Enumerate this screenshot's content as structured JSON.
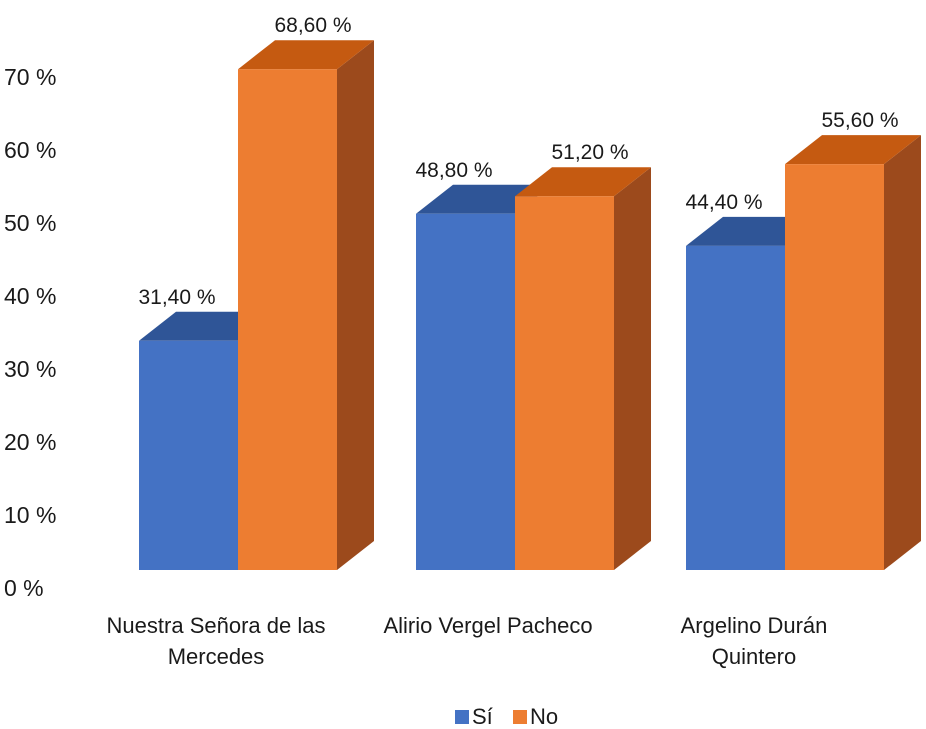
{
  "chart_data": {
    "type": "bar",
    "categories": [
      [
        "Nuestra Señora de las",
        "Mercedes"
      ],
      [
        "Alirio Vergel Pacheco"
      ],
      [
        "Argelino Durán",
        "Quintero"
      ]
    ],
    "series": [
      {
        "name": "Sí",
        "values": [
          31.4,
          48.8,
          44.4
        ],
        "labels": [
          "31,40 %",
          "48,80 %",
          "44,40 %"
        ],
        "color": "#4472C4",
        "top_color": "#2F5597",
        "side_color": "#2F5597"
      },
      {
        "name": "No",
        "values": [
          68.6,
          51.2,
          55.6
        ],
        "labels": [
          "68,60 %",
          "51,20 %",
          "55,60 %"
        ],
        "color": "#ED7D31",
        "top_color": "#C55A11",
        "side_color": "#9C4A1C"
      }
    ],
    "y_ticks": [
      "0 %",
      "10 %",
      "20 %",
      "30 %",
      "40 %",
      "50 %",
      "60 %",
      "70 %"
    ],
    "ylim": [
      0,
      70
    ],
    "legend_position": "bottom",
    "style": "3d-clustered-column",
    "grid": false
  }
}
